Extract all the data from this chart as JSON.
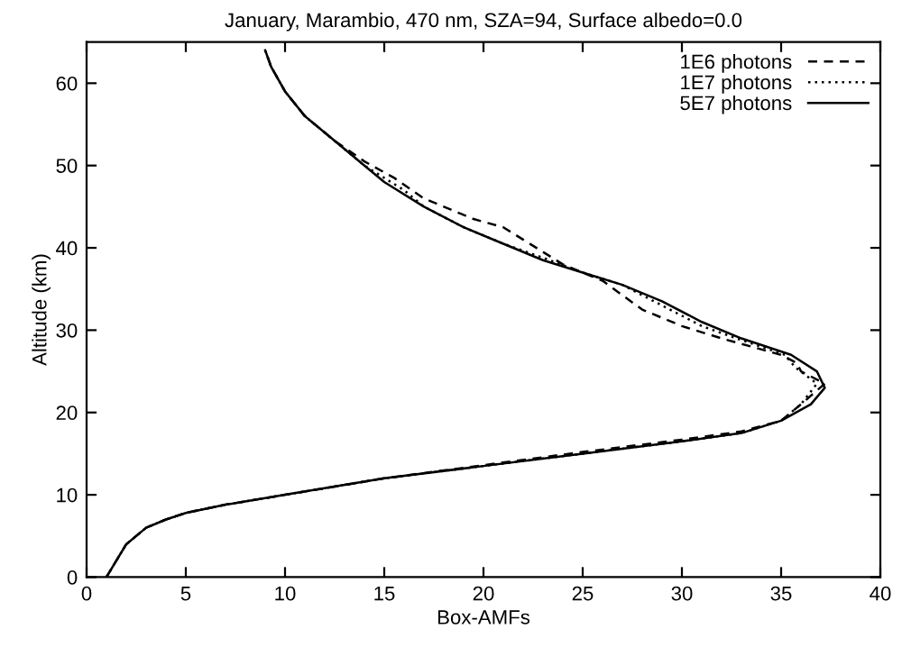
{
  "chart_data": {
    "type": "line",
    "title": "January, Marambio, 470 nm, SZA=94, Surface albedo=0.0",
    "xlabel": "Box-AMFs",
    "ylabel": "Altitude (km)",
    "xlim": [
      0,
      40
    ],
    "ylim": [
      0,
      65
    ],
    "xticks": [
      0,
      5,
      10,
      15,
      20,
      25,
      30,
      35,
      40
    ],
    "yticks": [
      0,
      10,
      20,
      30,
      40,
      50,
      60
    ],
    "grid": false,
    "legend": "top right",
    "series": [
      {
        "name": "1E6 photons",
        "color": "#000000",
        "line_style": "dashed",
        "x": [
          1,
          1.5,
          2,
          3,
          4,
          5,
          7,
          10,
          15,
          20,
          25,
          30,
          33,
          35,
          36,
          37.2,
          36,
          35.8,
          35,
          32,
          30,
          28,
          26,
          24,
          21,
          19.5,
          17,
          15.5,
          14,
          12.5,
          11,
          10,
          9.3,
          9
        ],
        "values": [
          0,
          2,
          4,
          6,
          7,
          7.8,
          8.8,
          10,
          12,
          13.6,
          15.2,
          16.7,
          17.7,
          19,
          21,
          23.5,
          25,
          26,
          27,
          29,
          30.5,
          32.5,
          36,
          38,
          42.5,
          43.5,
          46,
          48.5,
          50.5,
          53,
          56,
          59,
          62,
          64
        ]
      },
      {
        "name": "1E7 photons",
        "color": "#000000",
        "line_style": "dotted",
        "x": [
          1,
          1.5,
          2,
          3,
          4,
          5,
          7,
          10,
          15,
          20,
          25,
          30,
          33,
          35,
          36,
          36.8,
          35.7,
          35.2,
          33,
          31,
          29,
          27,
          25,
          23,
          21,
          19,
          17,
          16,
          14,
          12.5,
          11,
          10,
          9.3,
          9
        ],
        "values": [
          0,
          2,
          4,
          6,
          7,
          7.8,
          8.8,
          10,
          12,
          13.5,
          15,
          16.5,
          17.5,
          19,
          21,
          23.5,
          25.5,
          27,
          28.8,
          30.5,
          33,
          35.5,
          37,
          38.8,
          40.5,
          42.5,
          45,
          47,
          50,
          53,
          56,
          59,
          62,
          64
        ]
      },
      {
        "name": "5E7 photons",
        "color": "#000000",
        "line_style": "solid",
        "x": [
          1,
          1.5,
          2,
          3,
          4,
          5,
          7,
          10,
          15,
          20,
          25,
          30,
          33,
          35,
          36.5,
          37.2,
          36.8,
          35.5,
          33,
          31,
          29,
          27,
          25,
          23,
          21,
          19,
          17,
          15,
          14,
          12.5,
          11,
          10,
          9.3,
          9
        ],
        "values": [
          0,
          2,
          4,
          6,
          7,
          7.8,
          8.8,
          10,
          12,
          13.5,
          15,
          16.5,
          17.5,
          19,
          21,
          23,
          25,
          27,
          29,
          31,
          33.5,
          35.5,
          37,
          38.5,
          40.5,
          42.5,
          45,
          48,
          50,
          53,
          56,
          59,
          62,
          64
        ]
      }
    ]
  }
}
